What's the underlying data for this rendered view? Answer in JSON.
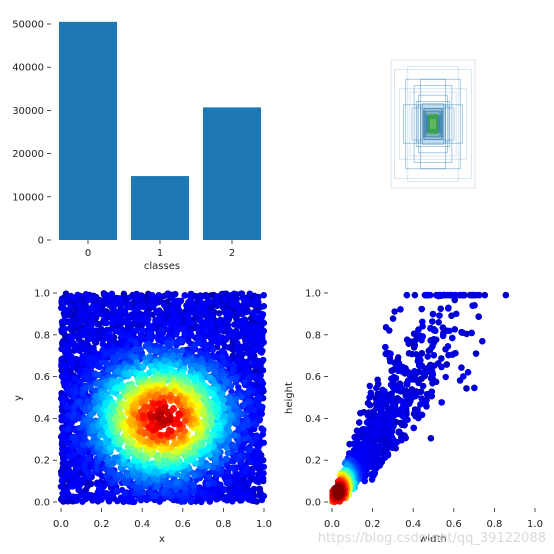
{
  "chart_data": [
    {
      "type": "bar",
      "categories": [
        "0",
        "1",
        "2"
      ],
      "values": [
        50500,
        14800,
        30700
      ],
      "xlabel": "classes",
      "ylabel": "",
      "ylim": [
        0,
        50000
      ],
      "yticks": [
        "0",
        "10000",
        "20000",
        "30000",
        "40000",
        "50000"
      ],
      "color": "#1f77b4"
    },
    {
      "type": "scatter",
      "subtype": "bounding-box-overlay",
      "box_color": "#1f77b4",
      "center_color": "#2ca02c",
      "boxes_wh": [
        [
          1.0,
          1.0
        ],
        [
          0.92,
          0.85
        ],
        [
          0.8,
          0.55
        ],
        [
          0.6,
          0.9
        ],
        [
          0.55,
          0.5
        ],
        [
          0.45,
          0.6
        ],
        [
          0.4,
          0.35
        ],
        [
          0.35,
          0.45
        ],
        [
          0.3,
          0.3
        ],
        [
          0.28,
          0.25
        ],
        [
          0.25,
          0.32
        ],
        [
          0.22,
          0.2
        ],
        [
          0.2,
          0.24
        ],
        [
          0.18,
          0.16
        ],
        [
          0.16,
          0.2
        ],
        [
          0.15,
          0.12
        ],
        [
          0.13,
          0.14
        ],
        [
          0.12,
          0.1
        ],
        [
          0.1,
          0.12
        ],
        [
          0.09,
          0.08
        ],
        [
          0.7,
          0.3
        ],
        [
          0.3,
          0.7
        ],
        [
          0.5,
          0.25
        ],
        [
          0.65,
          0.7
        ],
        [
          0.38,
          0.28
        ]
      ]
    },
    {
      "type": "scatter",
      "subtype": "density",
      "xlabel": "x",
      "ylabel": "y",
      "xlim": [
        0,
        1
      ],
      "ylim": [
        0,
        1
      ],
      "xticks": [
        "0.0",
        "0.2",
        "0.4",
        "0.6",
        "0.8",
        "1.0"
      ],
      "yticks": [
        "0.0",
        "0.2",
        "0.4",
        "0.6",
        "0.8",
        "1.0"
      ],
      "colormap": "jet",
      "density_peak": [
        0.5,
        0.4
      ]
    },
    {
      "type": "scatter",
      "subtype": "density",
      "xlabel": "width",
      "ylabel": "height",
      "xlim": [
        0,
        1
      ],
      "ylim": [
        0,
        1
      ],
      "xticks": [
        "0.0",
        "0.2",
        "0.4",
        "0.6",
        "0.8",
        "1.0"
      ],
      "yticks": [
        "0.0",
        "0.2",
        "0.4",
        "0.6",
        "0.8",
        "1.0"
      ],
      "colormap": "jet",
      "density_peak": [
        0.03,
        0.05
      ]
    }
  ],
  "watermark": "https://blog.csdn.net/qq_39122088"
}
